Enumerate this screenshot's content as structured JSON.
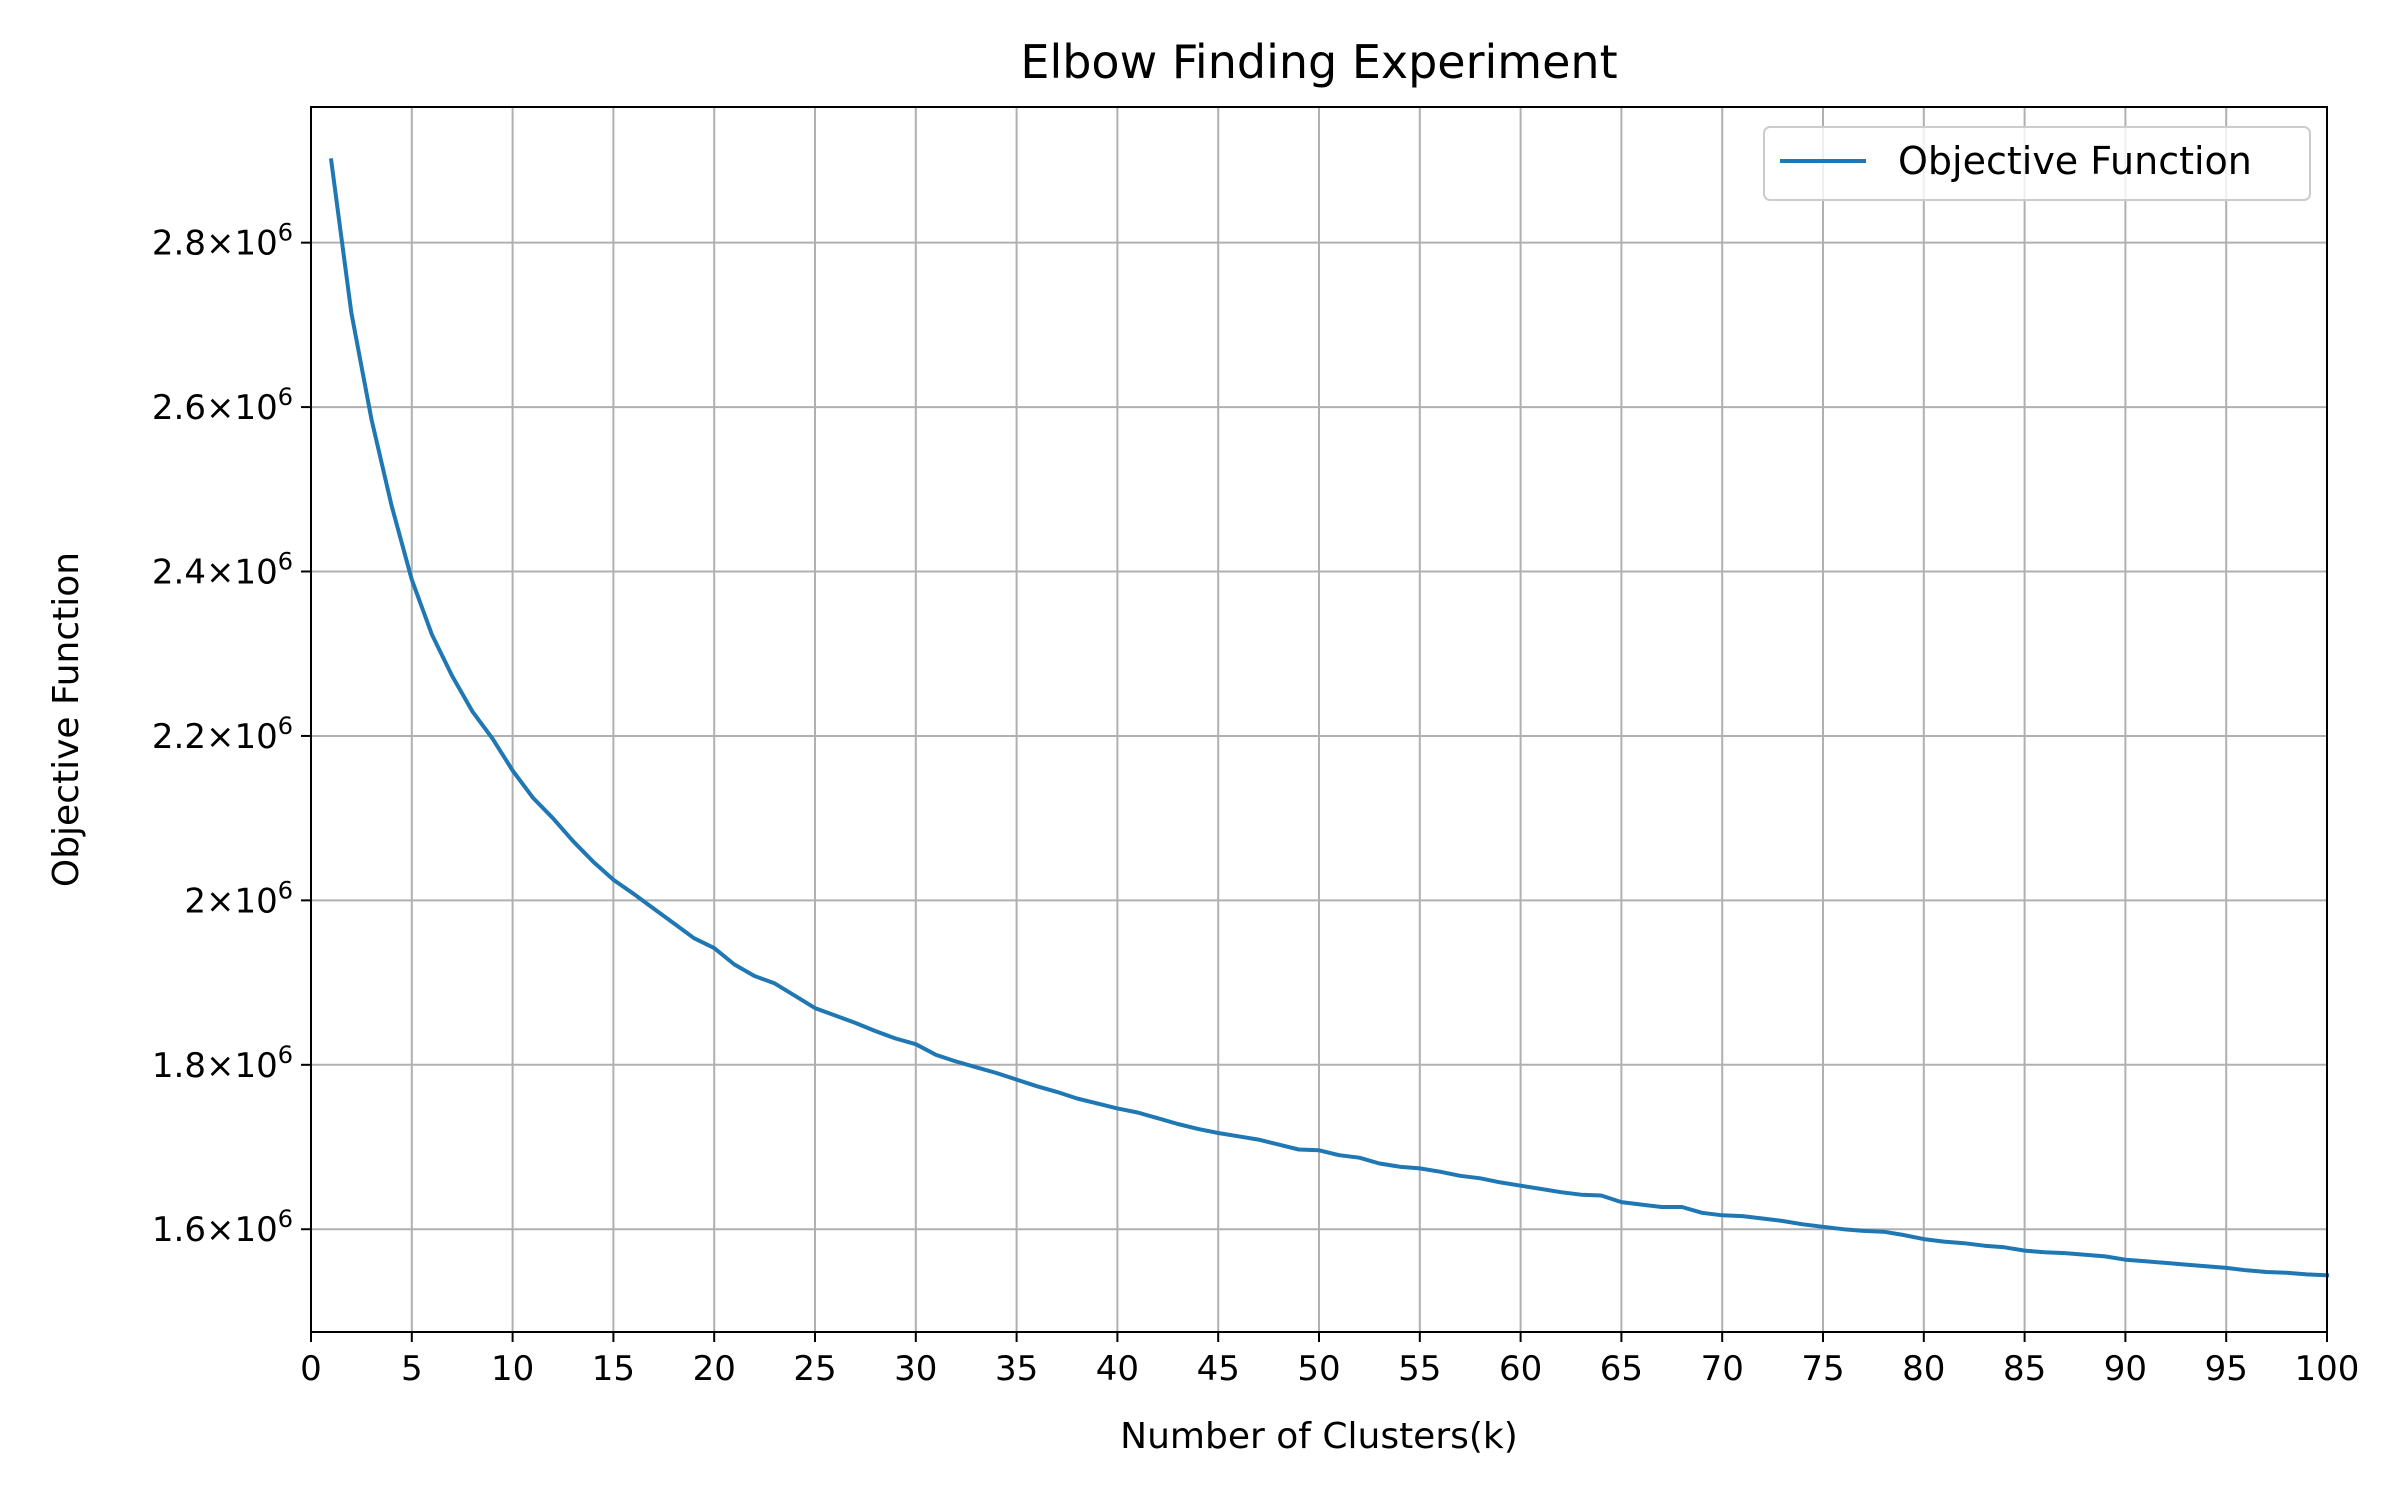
{
  "chart_data": {
    "type": "line",
    "title": "Elbow Finding Experiment",
    "xlabel": "Number of Clusters(k)",
    "ylabel": "Objective Function",
    "xlim": [
      0,
      100
    ],
    "ylim": [
      1475000,
      2965000
    ],
    "grid": true,
    "legend_position": "top-right",
    "x_ticks": [
      0,
      5,
      10,
      15,
      20,
      25,
      30,
      35,
      40,
      45,
      50,
      55,
      60,
      65,
      70,
      75,
      80,
      85,
      90,
      95,
      100
    ],
    "x_tick_labels": [
      "0",
      "5",
      "10",
      "15",
      "20",
      "25",
      "30",
      "35",
      "40",
      "45",
      "50",
      "55",
      "60",
      "65",
      "70",
      "75",
      "80",
      "85",
      "90",
      "95",
      "100"
    ],
    "y_ticks": [
      1600000,
      1800000,
      2000000,
      2200000,
      2400000,
      2600000,
      2800000
    ],
    "y_tick_labels": [
      {
        "mantissa": "1.6",
        "base": "×10",
        "exp": "6"
      },
      {
        "mantissa": "1.8",
        "base": "×10",
        "exp": "6"
      },
      {
        "mantissa": "2",
        "base": "×10",
        "exp": "6"
      },
      {
        "mantissa": "2.2",
        "base": "×10",
        "exp": "6"
      },
      {
        "mantissa": "2.4",
        "base": "×10",
        "exp": "6"
      },
      {
        "mantissa": "2.6",
        "base": "×10",
        "exp": "6"
      },
      {
        "mantissa": "2.8",
        "base": "×10",
        "exp": "6"
      }
    ],
    "series": [
      {
        "name": "Objective Function",
        "color": "#1f77b4",
        "x": [
          1,
          2,
          3,
          4,
          5,
          6,
          7,
          8,
          9,
          10,
          11,
          12,
          13,
          14,
          15,
          16,
          17,
          18,
          19,
          20,
          21,
          22,
          23,
          24,
          25,
          26,
          27,
          28,
          29,
          30,
          31,
          32,
          33,
          34,
          35,
          36,
          37,
          38,
          39,
          40,
          41,
          42,
          43,
          44,
          45,
          46,
          47,
          48,
          49,
          50,
          51,
          52,
          53,
          54,
          55,
          56,
          57,
          58,
          59,
          60,
          61,
          62,
          63,
          64,
          65,
          66,
          67,
          68,
          69,
          70,
          71,
          72,
          73,
          74,
          75,
          76,
          77,
          78,
          79,
          80,
          81,
          82,
          83,
          84,
          85,
          86,
          87,
          88,
          89,
          90,
          91,
          92,
          93,
          94,
          95,
          96,
          97,
          98,
          99,
          100
        ],
        "y": [
          2900000,
          2715000,
          2585000,
          2480000,
          2390000,
          2323000,
          2273000,
          2230000,
          2197000,
          2158000,
          2125000,
          2100000,
          2072000,
          2047000,
          2025000,
          2008000,
          1990000,
          1972000,
          1954000,
          1942000,
          1922000,
          1908000,
          1899000,
          1884000,
          1869000,
          1860000,
          1851000,
          1841000,
          1832000,
          1825000,
          1812000,
          1804000,
          1797000,
          1790000,
          1782000,
          1774000,
          1767000,
          1759000,
          1753000,
          1747000,
          1742000,
          1735000,
          1728000,
          1722000,
          1717000,
          1713000,
          1709000,
          1703000,
          1697000,
          1696000,
          1690000,
          1687000,
          1680000,
          1676000,
          1674000,
          1670000,
          1665000,
          1662000,
          1657000,
          1653000,
          1649000,
          1645000,
          1642000,
          1641000,
          1633000,
          1630000,
          1627000,
          1627000,
          1620000,
          1617000,
          1616000,
          1613000,
          1610000,
          1606000,
          1603000,
          1600000,
          1598000,
          1597000,
          1593000,
          1588000,
          1585000,
          1583000,
          1580000,
          1578000,
          1574000,
          1572000,
          1571000,
          1569000,
          1567000,
          1563000,
          1561000,
          1559000,
          1557000,
          1555000,
          1553000,
          1550000,
          1548000,
          1547000,
          1545000,
          1544000
        ]
      }
    ]
  }
}
